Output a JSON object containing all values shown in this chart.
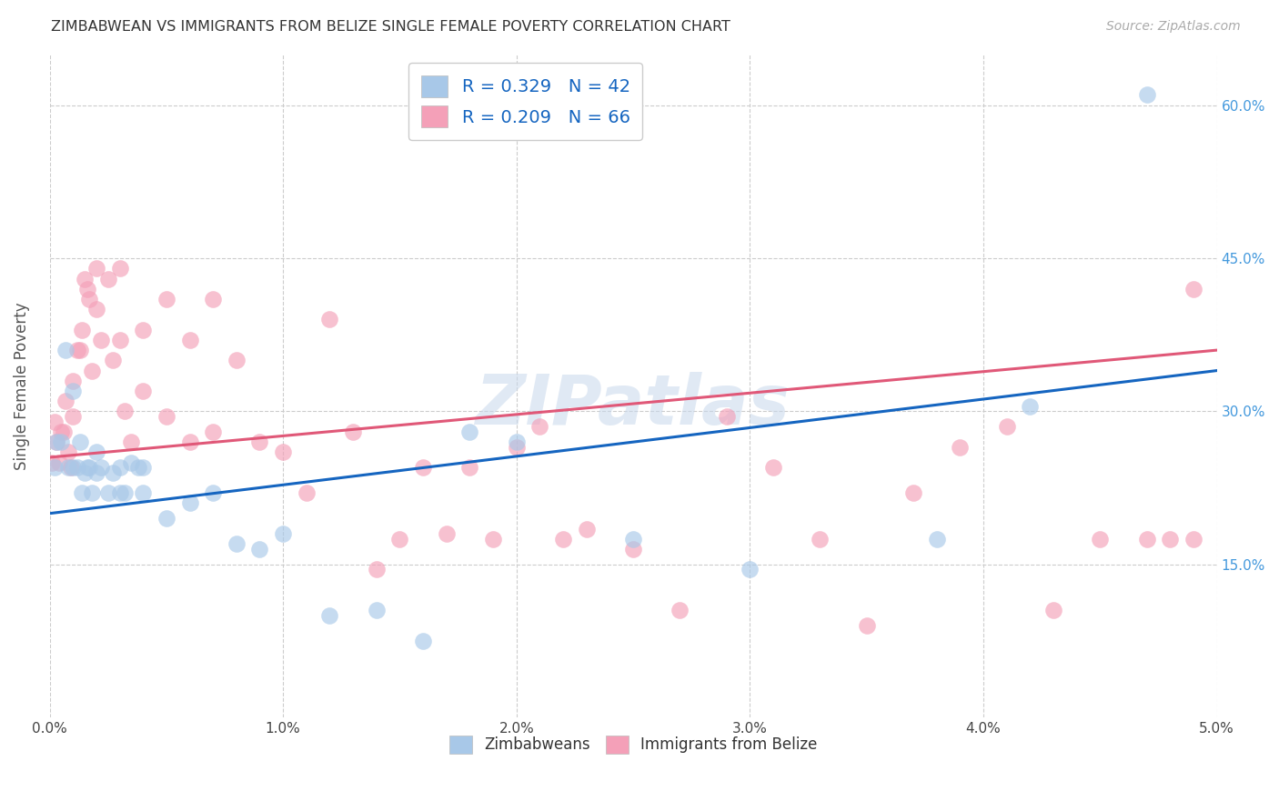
{
  "title": "ZIMBABWEAN VS IMMIGRANTS FROM BELIZE SINGLE FEMALE POVERTY CORRELATION CHART",
  "source": "Source: ZipAtlas.com",
  "ylabel": "Single Female Poverty",
  "legend_label1": "Zimbabweans",
  "legend_label2": "Immigrants from Belize",
  "R1": 0.329,
  "N1": 42,
  "R2": 0.209,
  "N2": 66,
  "color_blue": "#a8c8e8",
  "color_pink": "#f4a0b8",
  "line_blue": "#1565c0",
  "line_pink": "#e05878",
  "background": "#ffffff",
  "watermark": "ZIPatlas",
  "zimbabwean_x": [
    0.0002,
    0.0003,
    0.0005,
    0.0007,
    0.0008,
    0.001,
    0.001,
    0.0012,
    0.0013,
    0.0014,
    0.0015,
    0.0016,
    0.0017,
    0.0018,
    0.002,
    0.002,
    0.0022,
    0.0025,
    0.0027,
    0.003,
    0.003,
    0.0032,
    0.0035,
    0.0038,
    0.004,
    0.004,
    0.005,
    0.006,
    0.007,
    0.008,
    0.009,
    0.01,
    0.012,
    0.014,
    0.016,
    0.018,
    0.02,
    0.025,
    0.03,
    0.038,
    0.042,
    0.047
  ],
  "zimbabwean_y": [
    0.245,
    0.27,
    0.27,
    0.36,
    0.245,
    0.32,
    0.245,
    0.245,
    0.27,
    0.22,
    0.24,
    0.245,
    0.245,
    0.22,
    0.24,
    0.26,
    0.245,
    0.22,
    0.24,
    0.245,
    0.22,
    0.22,
    0.25,
    0.245,
    0.22,
    0.245,
    0.195,
    0.21,
    0.22,
    0.17,
    0.165,
    0.18,
    0.1,
    0.105,
    0.075,
    0.28,
    0.27,
    0.175,
    0.145,
    0.175,
    0.305,
    0.61
  ],
  "belize_x": [
    0.0001,
    0.0002,
    0.0003,
    0.0004,
    0.0005,
    0.0006,
    0.0007,
    0.0008,
    0.0009,
    0.001,
    0.001,
    0.0012,
    0.0013,
    0.0014,
    0.0015,
    0.0016,
    0.0017,
    0.0018,
    0.002,
    0.002,
    0.0022,
    0.0025,
    0.0027,
    0.003,
    0.003,
    0.0032,
    0.0035,
    0.004,
    0.004,
    0.005,
    0.005,
    0.006,
    0.006,
    0.007,
    0.007,
    0.008,
    0.009,
    0.01,
    0.011,
    0.012,
    0.013,
    0.014,
    0.015,
    0.016,
    0.017,
    0.018,
    0.019,
    0.02,
    0.021,
    0.022,
    0.023,
    0.025,
    0.027,
    0.029,
    0.031,
    0.033,
    0.035,
    0.037,
    0.039,
    0.041,
    0.043,
    0.045,
    0.047,
    0.048,
    0.049,
    0.049
  ],
  "belize_y": [
    0.25,
    0.29,
    0.27,
    0.25,
    0.28,
    0.28,
    0.31,
    0.26,
    0.245,
    0.33,
    0.295,
    0.36,
    0.36,
    0.38,
    0.43,
    0.42,
    0.41,
    0.34,
    0.44,
    0.4,
    0.37,
    0.43,
    0.35,
    0.44,
    0.37,
    0.3,
    0.27,
    0.38,
    0.32,
    0.41,
    0.295,
    0.37,
    0.27,
    0.41,
    0.28,
    0.35,
    0.27,
    0.26,
    0.22,
    0.39,
    0.28,
    0.145,
    0.175,
    0.245,
    0.18,
    0.245,
    0.175,
    0.265,
    0.285,
    0.175,
    0.185,
    0.165,
    0.105,
    0.295,
    0.245,
    0.175,
    0.09,
    0.22,
    0.265,
    0.285,
    0.105,
    0.175,
    0.175,
    0.175,
    0.42,
    0.175
  ],
  "xlim": [
    0.0,
    0.05
  ],
  "ylim": [
    0.0,
    0.65
  ],
  "xticks": [
    0.0,
    0.01,
    0.02,
    0.03,
    0.04,
    0.05
  ],
  "xtick_labels": [
    "0.0%",
    "1.0%",
    "2.0%",
    "3.0%",
    "4.0%",
    "5.0%"
  ],
  "yticks": [
    0.15,
    0.3,
    0.45,
    0.6
  ],
  "ytick_labels": [
    "15.0%",
    "30.0%",
    "45.0%",
    "60.0%"
  ],
  "line_blue_y0": 0.2,
  "line_blue_y1": 0.34,
  "line_pink_y0": 0.255,
  "line_pink_y1": 0.36
}
